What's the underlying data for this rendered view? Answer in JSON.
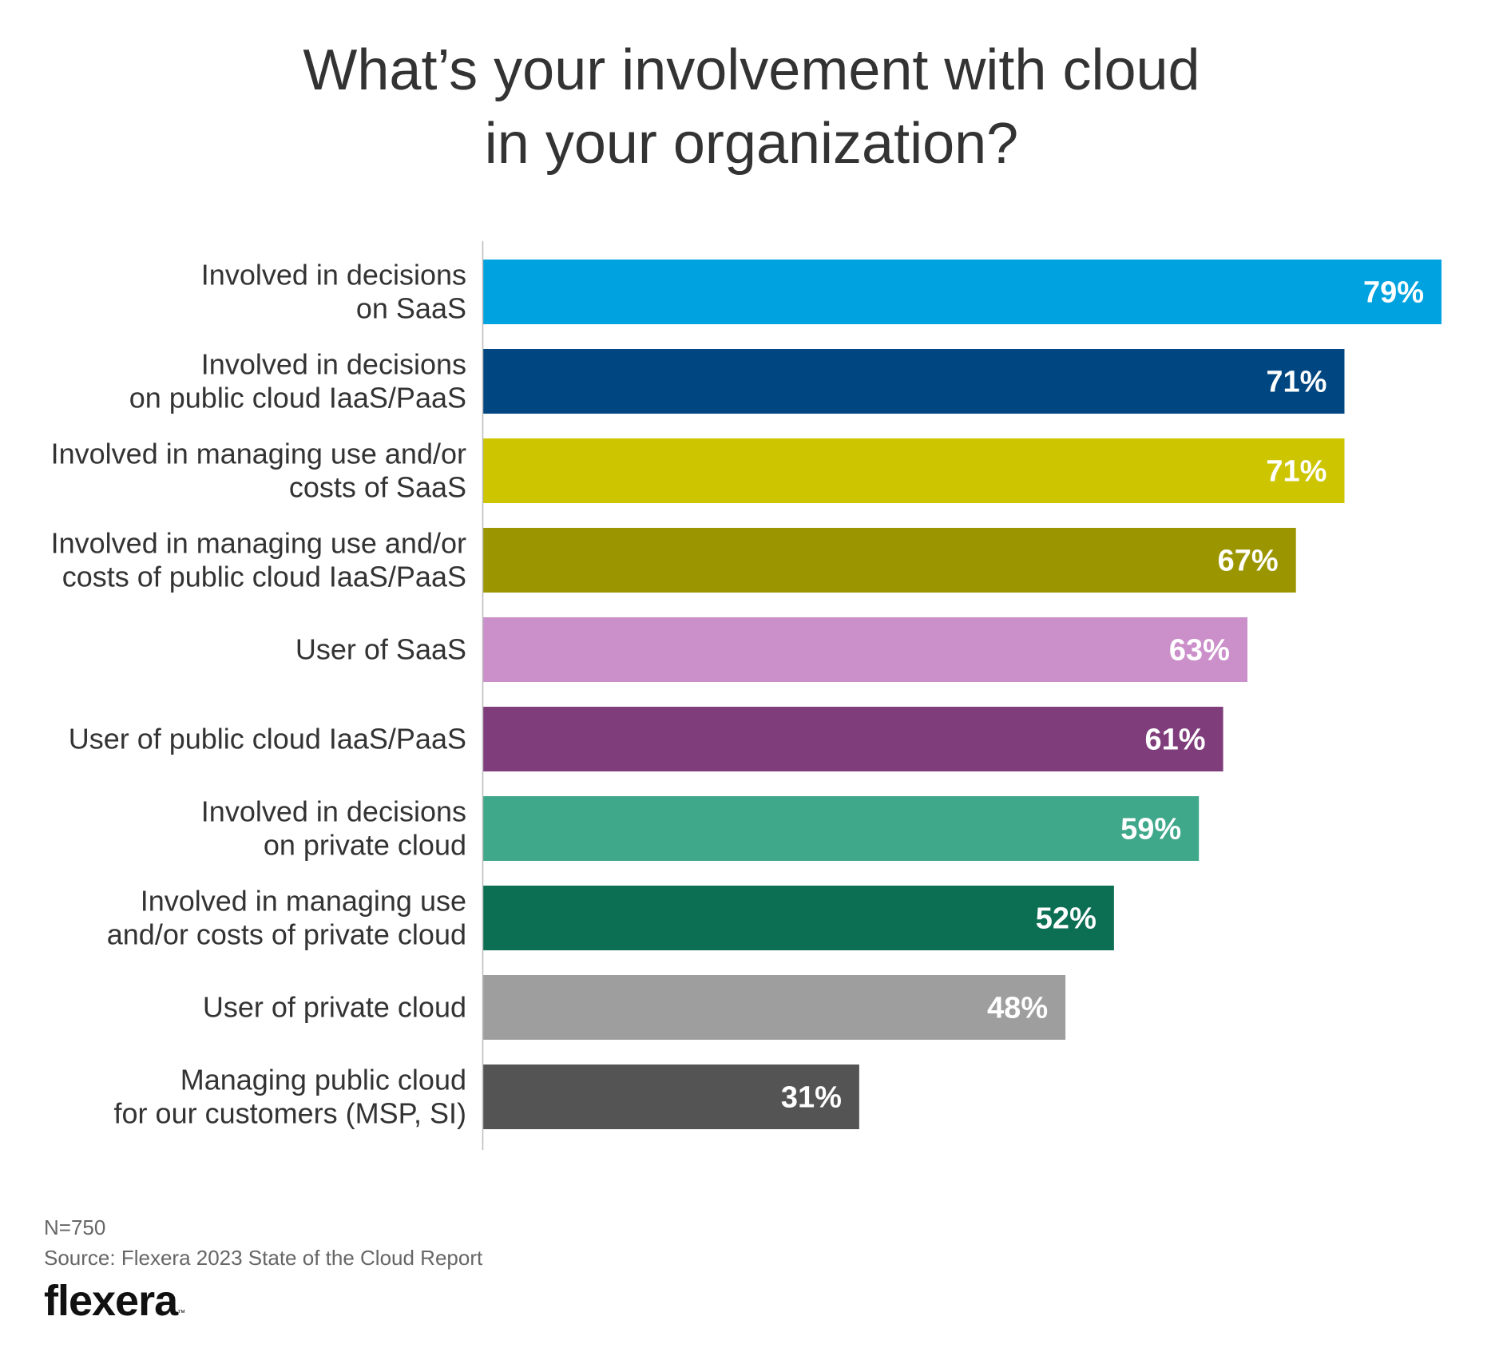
{
  "title_lines": [
    "What’s your involvement with cloud",
    "in your organization?"
  ],
  "footer": {
    "n": "N=750",
    "source": "Source: Flexera 2023 State of the Cloud Report",
    "logo": "flexera",
    "logo_mark": "™"
  },
  "chart_data": {
    "type": "bar",
    "orientation": "horizontal",
    "title": "What’s your involvement with cloud in your organization?",
    "xlim": [
      0,
      100
    ],
    "grid": false,
    "value_suffix": "%",
    "categories": [
      [
        "Involved in decisions",
        "on SaaS"
      ],
      [
        "Involved in decisions",
        "on public cloud IaaS/PaaS"
      ],
      [
        "Involved in managing use and/or",
        "costs of SaaS"
      ],
      [
        "Involved in managing use and/or",
        "costs of public cloud IaaS/PaaS"
      ],
      [
        "User of SaaS"
      ],
      [
        "User of public cloud IaaS/PaaS"
      ],
      [
        "Involved in decisions",
        "on private cloud"
      ],
      [
        "Involved in managing use",
        "and/or costs of private cloud"
      ],
      [
        "User of private cloud"
      ],
      [
        "Managing public cloud",
        "for our customers (MSP, SI)"
      ]
    ],
    "values": [
      79,
      71,
      71,
      67,
      63,
      61,
      59,
      52,
      48,
      31
    ],
    "value_labels": [
      "79%",
      "71%",
      "71%",
      "67%",
      "63%",
      "61%",
      "59%",
      "52%",
      "48%",
      "31%"
    ],
    "colors": [
      "#00a3e0",
      "#004680",
      "#cdc500",
      "#9b9600",
      "#cb8fca",
      "#7f3d7c",
      "#3fa78a",
      "#0c6e53",
      "#9e9e9e",
      "#545454"
    ]
  }
}
